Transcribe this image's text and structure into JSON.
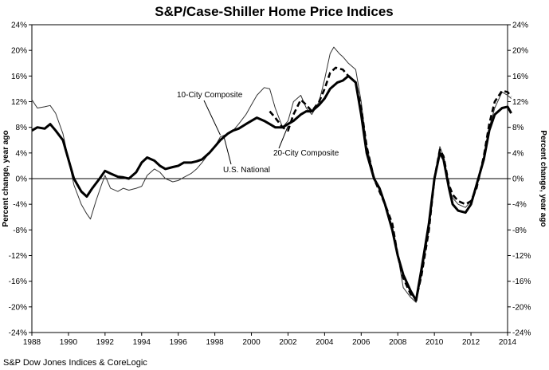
{
  "chart_data": {
    "type": "line",
    "title": "S&P/Case-Shiller Home Price Indices",
    "ylabel_left": "Percent change, year ago",
    "ylabel_right": "Percent change, year ago",
    "source": "S&P Dow Jones Indices & CoreLogic",
    "xlim": [
      1988,
      2014
    ],
    "ylim": [
      -24,
      24
    ],
    "x_ticks": [
      "1988",
      "1990",
      "1992",
      "1994",
      "1996",
      "1998",
      "2000",
      "2002",
      "2004",
      "2006",
      "2008",
      "2010",
      "2012",
      "2014"
    ],
    "y_ticks": [
      "24%",
      "20%",
      "16%",
      "12%",
      "8%",
      "4%",
      "0%",
      "-4%",
      "-8%",
      "-12%",
      "-16%",
      "-20%",
      "-24%"
    ],
    "grid": false,
    "annotations": [
      {
        "text": "10-City Composite",
        "series": "10-City Composite"
      },
      {
        "text": "20-City Composite",
        "series": "20-City Composite"
      },
      {
        "text": "U.S. National",
        "series": "U.S. National"
      }
    ],
    "series": [
      {
        "name": "10-City Composite",
        "style": "thin",
        "points": [
          [
            1988.0,
            12.3
          ],
          [
            1988.3,
            11.0
          ],
          [
            1988.7,
            11.2
          ],
          [
            1989.0,
            11.4
          ],
          [
            1989.3,
            10.2
          ],
          [
            1989.7,
            7.0
          ],
          [
            1990.0,
            3.0
          ],
          [
            1990.3,
            -1.0
          ],
          [
            1990.7,
            -4.0
          ],
          [
            1991.0,
            -5.5
          ],
          [
            1991.2,
            -6.3
          ],
          [
            1991.5,
            -3.5
          ],
          [
            1991.8,
            -1.0
          ],
          [
            1992.0,
            0.5
          ],
          [
            1992.3,
            -1.5
          ],
          [
            1992.7,
            -2.0
          ],
          [
            1993.0,
            -1.5
          ],
          [
            1993.3,
            -1.8
          ],
          [
            1993.7,
            -1.5
          ],
          [
            1994.0,
            -1.2
          ],
          [
            1994.3,
            0.5
          ],
          [
            1994.7,
            1.5
          ],
          [
            1995.0,
            1.0
          ],
          [
            1995.3,
            0.0
          ],
          [
            1995.7,
            -0.5
          ],
          [
            1996.0,
            -0.3
          ],
          [
            1996.3,
            0.2
          ],
          [
            1996.7,
            0.8
          ],
          [
            1997.0,
            1.5
          ],
          [
            1997.3,
            2.5
          ],
          [
            1997.7,
            4.0
          ],
          [
            1998.0,
            5.0
          ],
          [
            1998.3,
            6.5
          ],
          [
            1998.7,
            7.0
          ],
          [
            1999.0,
            7.5
          ],
          [
            1999.3,
            8.5
          ],
          [
            1999.7,
            10.0
          ],
          [
            2000.0,
            11.5
          ],
          [
            2000.3,
            13.0
          ],
          [
            2000.7,
            14.2
          ],
          [
            2001.0,
            14.0
          ],
          [
            2001.3,
            11.0
          ],
          [
            2001.7,
            8.0
          ],
          [
            2002.0,
            9.0
          ],
          [
            2002.3,
            12.0
          ],
          [
            2002.7,
            13.0
          ],
          [
            2003.0,
            11.0
          ],
          [
            2003.3,
            10.0
          ],
          [
            2003.7,
            12.0
          ],
          [
            2004.0,
            15.5
          ],
          [
            2004.3,
            19.5
          ],
          [
            2004.5,
            20.5
          ],
          [
            2004.8,
            19.5
          ],
          [
            2005.0,
            19.0
          ],
          [
            2005.3,
            18.0
          ],
          [
            2005.7,
            17.0
          ],
          [
            2006.0,
            12.0
          ],
          [
            2006.3,
            5.0
          ],
          [
            2006.7,
            0.5
          ],
          [
            2007.0,
            -2.0
          ],
          [
            2007.3,
            -4.0
          ],
          [
            2007.7,
            -7.5
          ],
          [
            2008.0,
            -12.0
          ],
          [
            2008.3,
            -17.0
          ],
          [
            2008.7,
            -18.5
          ],
          [
            2009.0,
            -19.3
          ],
          [
            2009.3,
            -15.0
          ],
          [
            2009.7,
            -8.0
          ],
          [
            2010.0,
            0.0
          ],
          [
            2010.3,
            5.0
          ],
          [
            2010.5,
            3.5
          ],
          [
            2010.8,
            -1.5
          ],
          [
            2011.0,
            -3.0
          ],
          [
            2011.3,
            -4.0
          ],
          [
            2011.7,
            -4.5
          ],
          [
            2012.0,
            -3.5
          ],
          [
            2012.3,
            -1.0
          ],
          [
            2012.7,
            3.0
          ],
          [
            2013.0,
            8.0
          ],
          [
            2013.3,
            11.0
          ],
          [
            2013.7,
            13.5
          ],
          [
            2014.0,
            13.0
          ],
          [
            2014.2,
            12.5
          ]
        ]
      },
      {
        "name": "20-City Composite",
        "style": "dashed",
        "points": [
          [
            2001.0,
            10.5
          ],
          [
            2001.3,
            9.5
          ],
          [
            2001.7,
            8.0
          ],
          [
            2002.0,
            7.5
          ],
          [
            2002.3,
            10.0
          ],
          [
            2002.7,
            12.3
          ],
          [
            2003.0,
            11.5
          ],
          [
            2003.3,
            10.5
          ],
          [
            2003.7,
            12.0
          ],
          [
            2004.0,
            14.0
          ],
          [
            2004.3,
            16.5
          ],
          [
            2004.6,
            17.3
          ],
          [
            2005.0,
            17.0
          ],
          [
            2005.3,
            16.0
          ],
          [
            2005.7,
            15.0
          ],
          [
            2006.0,
            11.0
          ],
          [
            2006.3,
            5.0
          ],
          [
            2006.7,
            0.0
          ],
          [
            2007.0,
            -2.0
          ],
          [
            2007.3,
            -4.0
          ],
          [
            2007.7,
            -7.0
          ],
          [
            2008.0,
            -12.0
          ],
          [
            2008.3,
            -15.5
          ],
          [
            2008.7,
            -18.0
          ],
          [
            2009.0,
            -18.8
          ],
          [
            2009.3,
            -15.0
          ],
          [
            2009.7,
            -8.0
          ],
          [
            2010.0,
            0.0
          ],
          [
            2010.3,
            4.5
          ],
          [
            2010.5,
            3.5
          ],
          [
            2010.8,
            -1.0
          ],
          [
            2011.0,
            -2.5
          ],
          [
            2011.3,
            -3.5
          ],
          [
            2011.7,
            -4.0
          ],
          [
            2012.0,
            -3.5
          ],
          [
            2012.3,
            -1.5
          ],
          [
            2012.7,
            3.5
          ],
          [
            2013.0,
            8.5
          ],
          [
            2013.3,
            12.0
          ],
          [
            2013.7,
            13.7
          ],
          [
            2014.0,
            13.5
          ],
          [
            2014.2,
            12.8
          ]
        ]
      },
      {
        "name": "U.S. National",
        "style": "thick",
        "points": [
          [
            1988.0,
            7.5
          ],
          [
            1988.3,
            8.0
          ],
          [
            1988.7,
            7.8
          ],
          [
            1989.0,
            8.5
          ],
          [
            1989.3,
            7.5
          ],
          [
            1989.7,
            6.0
          ],
          [
            1990.0,
            3.0
          ],
          [
            1990.3,
            0.0
          ],
          [
            1990.7,
            -2.0
          ],
          [
            1991.0,
            -2.8
          ],
          [
            1991.3,
            -1.5
          ],
          [
            1991.7,
            0.0
          ],
          [
            1992.0,
            1.2
          ],
          [
            1992.3,
            0.8
          ],
          [
            1992.7,
            0.3
          ],
          [
            1993.0,
            0.2
          ],
          [
            1993.3,
            0.0
          ],
          [
            1993.7,
            1.0
          ],
          [
            1994.0,
            2.5
          ],
          [
            1994.3,
            3.3
          ],
          [
            1994.7,
            2.8
          ],
          [
            1995.0,
            2.0
          ],
          [
            1995.3,
            1.5
          ],
          [
            1995.7,
            1.8
          ],
          [
            1996.0,
            2.0
          ],
          [
            1996.3,
            2.5
          ],
          [
            1996.7,
            2.5
          ],
          [
            1997.0,
            2.7
          ],
          [
            1997.3,
            3.0
          ],
          [
            1997.7,
            4.0
          ],
          [
            1998.0,
            5.0
          ],
          [
            1998.3,
            6.0
          ],
          [
            1998.7,
            7.0
          ],
          [
            1999.0,
            7.5
          ],
          [
            1999.3,
            7.8
          ],
          [
            1999.7,
            8.5
          ],
          [
            2000.0,
            9.0
          ],
          [
            2000.3,
            9.5
          ],
          [
            2000.7,
            9.0
          ],
          [
            2001.0,
            8.5
          ],
          [
            2001.3,
            8.0
          ],
          [
            2001.7,
            8.0
          ],
          [
            2002.0,
            8.5
          ],
          [
            2002.3,
            9.0
          ],
          [
            2002.7,
            10.0
          ],
          [
            2003.0,
            10.5
          ],
          [
            2003.3,
            10.5
          ],
          [
            2003.7,
            11.5
          ],
          [
            2004.0,
            12.5
          ],
          [
            2004.3,
            14.0
          ],
          [
            2004.7,
            15.0
          ],
          [
            2005.0,
            15.3
          ],
          [
            2005.3,
            16.0
          ],
          [
            2005.7,
            15.0
          ],
          [
            2006.0,
            10.0
          ],
          [
            2006.3,
            4.0
          ],
          [
            2006.7,
            0.0
          ],
          [
            2007.0,
            -1.5
          ],
          [
            2007.3,
            -4.0
          ],
          [
            2007.7,
            -8.0
          ],
          [
            2008.0,
            -12.0
          ],
          [
            2008.3,
            -15.0
          ],
          [
            2008.7,
            -17.5
          ],
          [
            2009.0,
            -19.0
          ],
          [
            2009.3,
            -14.0
          ],
          [
            2009.7,
            -7.0
          ],
          [
            2010.0,
            0.0
          ],
          [
            2010.3,
            4.0
          ],
          [
            2010.5,
            3.0
          ],
          [
            2010.8,
            -1.5
          ],
          [
            2011.0,
            -4.0
          ],
          [
            2011.3,
            -5.0
          ],
          [
            2011.7,
            -5.3
          ],
          [
            2012.0,
            -4.0
          ],
          [
            2012.3,
            -1.0
          ],
          [
            2012.7,
            3.0
          ],
          [
            2013.0,
            7.5
          ],
          [
            2013.3,
            10.0
          ],
          [
            2013.7,
            11.0
          ],
          [
            2014.0,
            11.2
          ],
          [
            2014.2,
            10.2
          ]
        ]
      }
    ]
  }
}
